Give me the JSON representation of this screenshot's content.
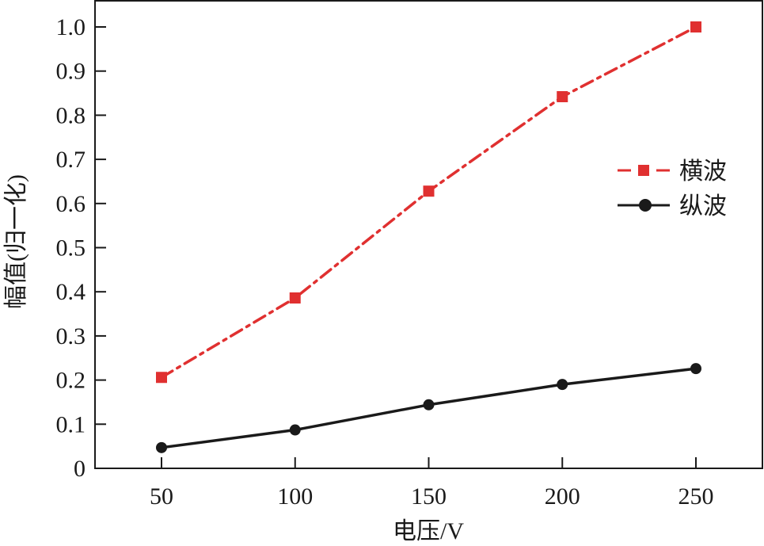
{
  "chart_data": {
    "type": "line",
    "title": "",
    "xlabel": "电压/V",
    "ylabel": "幅值(归一化)",
    "x": [
      50,
      100,
      150,
      200,
      250
    ],
    "xticks": [
      "50",
      "100",
      "150",
      "200",
      "250"
    ],
    "yticks": [
      "0",
      "0.1",
      "0.2",
      "0.3",
      "0.4",
      "0.5",
      "0.6",
      "0.7",
      "0.8",
      "0.9",
      "1.0"
    ],
    "xlim": [
      25,
      275
    ],
    "ylim": [
      0,
      1.06
    ],
    "grid": false,
    "legend_position": "right-middle",
    "series": [
      {
        "name": "横波",
        "values": [
          0.206,
          0.386,
          0.628,
          0.842,
          1.0
        ],
        "color": "#e03030",
        "line_style": "dash-dot",
        "marker": "square"
      },
      {
        "name": "纵波",
        "values": [
          0.047,
          0.087,
          0.144,
          0.19,
          0.226
        ],
        "color": "#1a1a1a",
        "line_style": "solid",
        "marker": "circle"
      }
    ]
  },
  "legend": {
    "items": [
      {
        "label": "横波"
      },
      {
        "label": "纵波"
      }
    ]
  },
  "axes": {
    "xlabel": "电压/V",
    "ylabel": "幅值(归一化)"
  }
}
